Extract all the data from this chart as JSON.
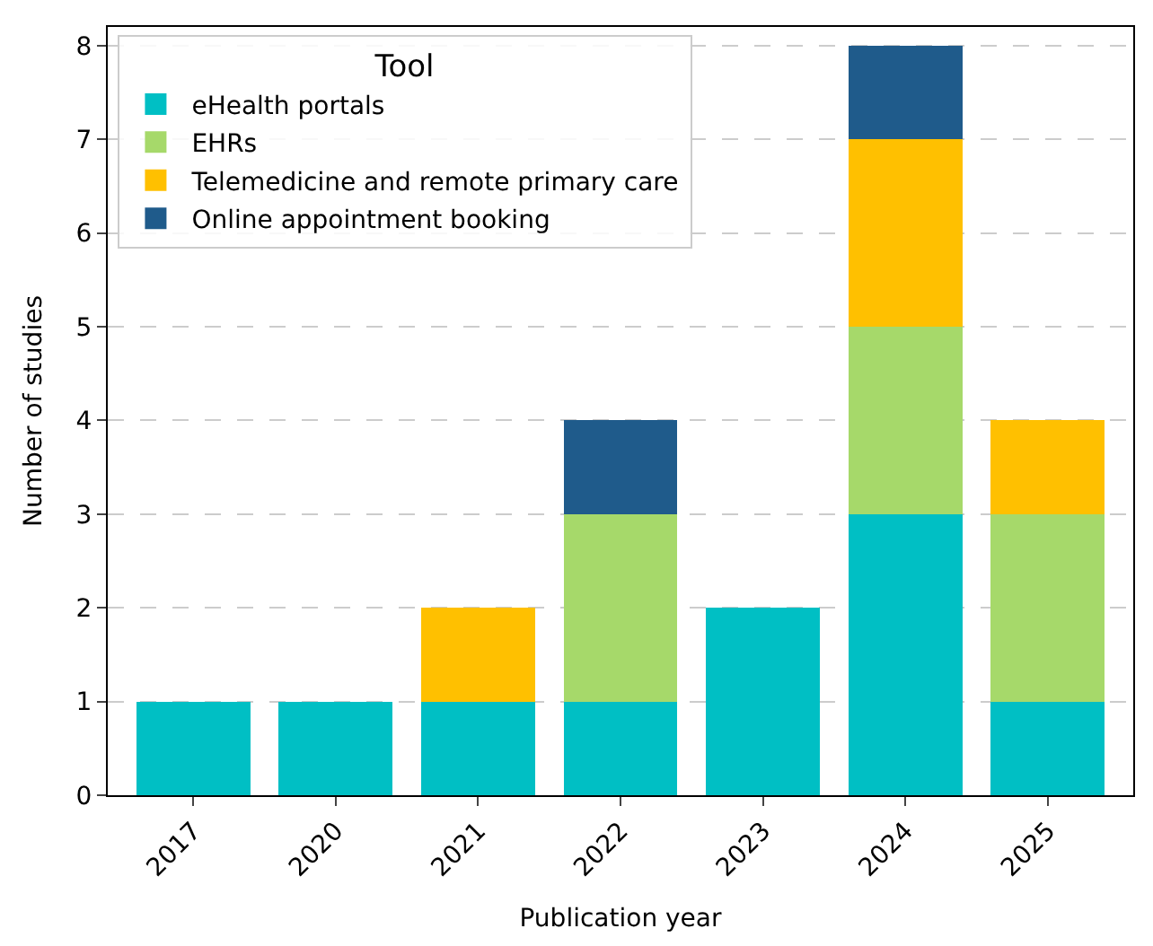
{
  "chart_data": {
    "type": "bar",
    "stacked": true,
    "xlabel": "Publication year",
    "ylabel": "Number of studies",
    "legend_title": "Tool",
    "legend": "top left",
    "grid": "y",
    "categories": [
      "2017",
      "2020",
      "2021",
      "2022",
      "2023",
      "2024",
      "2025"
    ],
    "series": [
      {
        "name": "eHealth portals",
        "color": "#00bfc4",
        "values": [
          1,
          1,
          1,
          1,
          2,
          3,
          1
        ]
      },
      {
        "name": "EHRs",
        "color": "#a6d96a",
        "values": [
          0,
          0,
          0,
          2,
          0,
          2,
          2
        ]
      },
      {
        "name": "Telemedicine and remote primary care",
        "color": "#ffc000",
        "values": [
          0,
          0,
          1,
          0,
          0,
          2,
          1
        ]
      },
      {
        "name": "Online appointment booking",
        "color": "#1f5b8b",
        "values": [
          0,
          0,
          0,
          1,
          0,
          1,
          0
        ]
      }
    ],
    "ylim": [
      0,
      8.2
    ],
    "yticks": [
      0,
      1,
      2,
      3,
      4,
      5,
      6,
      7,
      8
    ]
  }
}
